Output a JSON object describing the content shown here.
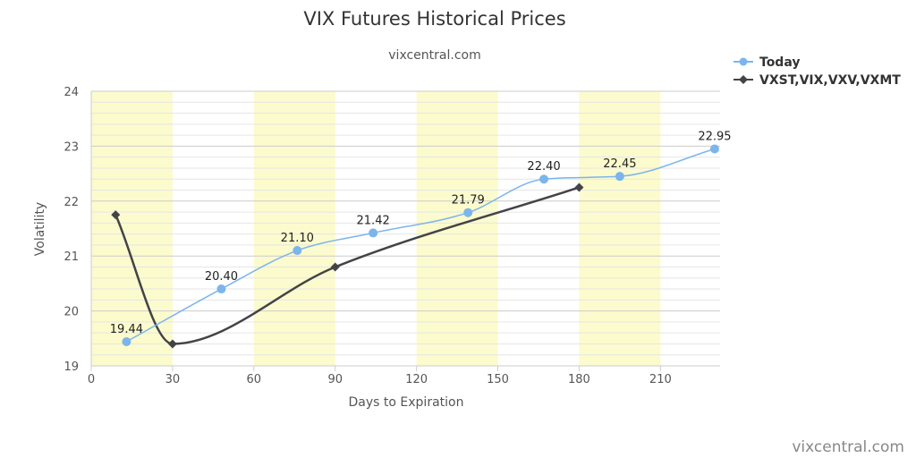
{
  "chart_data": {
    "type": "line",
    "title": "VIX Futures Historical Prices",
    "subtitle": "vixcentral.com",
    "xlabel": "Days to Expiration",
    "ylabel": "Volatility",
    "xlim": [
      0,
      232
    ],
    "ylim": [
      19,
      24
    ],
    "x_ticks": [
      "0",
      "30",
      "60",
      "90",
      "120",
      "150",
      "180",
      "210"
    ],
    "y_ticks": [
      "19",
      "20",
      "21",
      "22",
      "23",
      "24"
    ],
    "shaded_bands": [
      [
        0,
        30
      ],
      [
        60,
        90
      ],
      [
        120,
        150
      ],
      [
        180,
        210
      ]
    ],
    "legend_position": "top-right",
    "series": [
      {
        "name": "Today",
        "color": "#7cb5ec",
        "marker": "circle",
        "x": [
          13,
          48,
          76,
          104,
          139,
          167,
          195,
          230
        ],
        "y": [
          19.44,
          20.4,
          21.1,
          21.42,
          21.79,
          22.4,
          22.45,
          22.95
        ],
        "labels": [
          "19.44",
          "20.40",
          "21.10",
          "21.42",
          "21.79",
          "22.40",
          "22.45",
          "22.95"
        ]
      },
      {
        "name": "VXST,VIX,VXV,VXMT",
        "color": "#434348",
        "marker": "diamond",
        "x": [
          9,
          30,
          90,
          180
        ],
        "y": [
          21.75,
          19.4,
          20.8,
          22.25
        ]
      }
    ]
  },
  "credit": "vixcentral.com"
}
